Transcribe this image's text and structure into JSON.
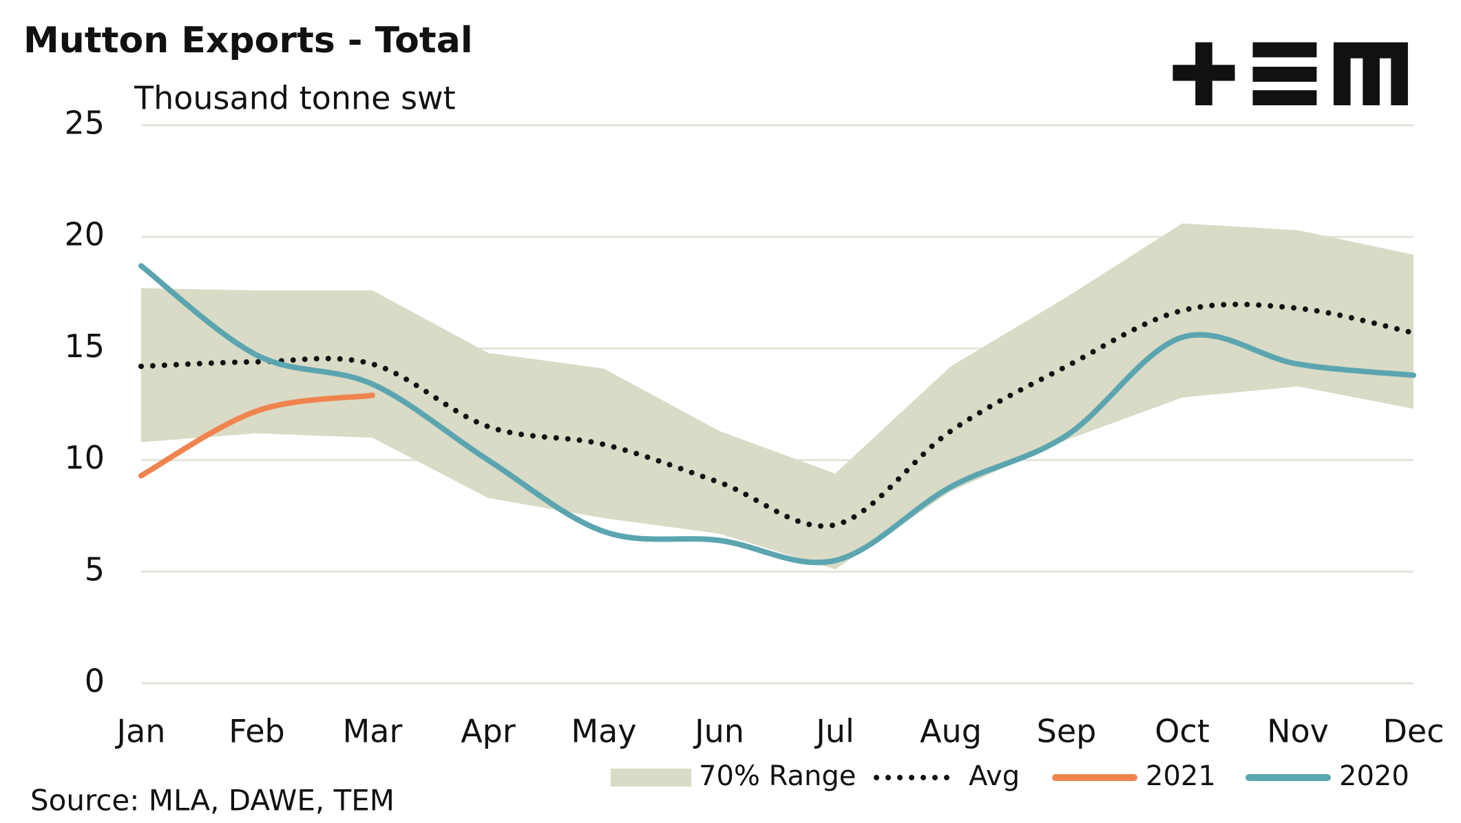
{
  "chart_data": {
    "type": "line",
    "title": "Mutton Exports - Total",
    "subtitle": "Thousand tonne swt",
    "source": "Source: MLA, DAWE, TEM",
    "categories": [
      "Jan",
      "Feb",
      "Mar",
      "Apr",
      "May",
      "Jun",
      "Jul",
      "Aug",
      "Sep",
      "Oct",
      "Nov",
      "Dec"
    ],
    "ylim": [
      0,
      25
    ],
    "yticks": [
      0,
      5,
      10,
      15,
      20,
      25
    ],
    "grid": true,
    "legend": "bottom",
    "series": [
      {
        "name": "70% Range",
        "color": "#d9dbc6",
        "low": [
          10.8,
          11.2,
          11.0,
          8.3,
          7.4,
          6.7,
          5.1,
          8.6,
          10.9,
          12.8,
          13.3,
          12.3
        ],
        "high": [
          17.7,
          17.6,
          17.6,
          14.8,
          14.1,
          11.3,
          9.4,
          14.2,
          17.3,
          20.6,
          20.3,
          19.2
        ]
      },
      {
        "name": "Avg",
        "color": "#111111",
        "values": [
          14.2,
          14.4,
          14.3,
          11.5,
          10.7,
          9.0,
          7.1,
          11.3,
          14.2,
          16.7,
          16.8,
          15.7
        ]
      },
      {
        "name": "2021",
        "color": "#f0844f",
        "values": [
          9.3,
          12.2,
          12.9,
          null,
          null,
          null,
          null,
          null,
          null,
          null,
          null,
          null
        ]
      },
      {
        "name": "2020",
        "color": "#5ba5b0",
        "values": [
          18.7,
          14.7,
          13.4,
          10.0,
          6.8,
          6.4,
          5.5,
          8.8,
          11.1,
          15.5,
          14.3,
          13.8
        ]
      }
    ]
  }
}
